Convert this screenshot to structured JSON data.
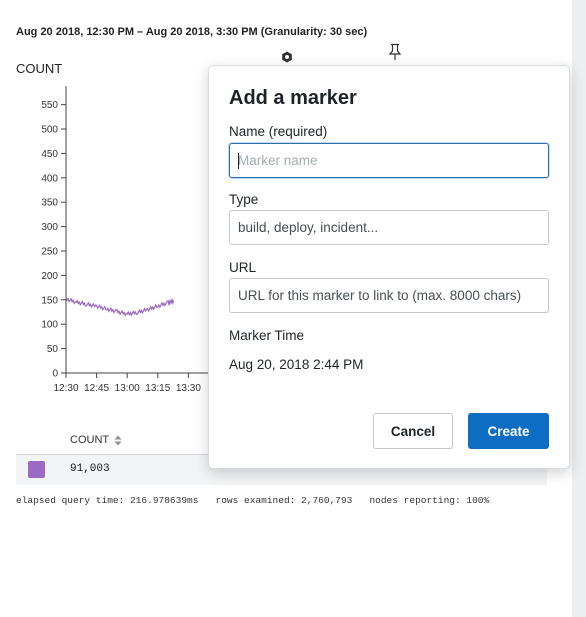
{
  "header": {
    "time_range": "Aug 20 2018, 12:30 PM – Aug 20 2018, 3:30 PM (Granularity: 30 sec)",
    "chart_title": "COUNT"
  },
  "icons": {
    "gear": "gear-icon",
    "pin": "pin-icon",
    "sort": "sort-icon"
  },
  "chart_data": {
    "type": "line",
    "title": "COUNT",
    "xlabel": "",
    "ylabel": "",
    "ylim": [
      0,
      580
    ],
    "yticks": [
      "0",
      "50",
      "100",
      "150",
      "200",
      "250",
      "300",
      "350",
      "400",
      "450",
      "500",
      "550"
    ],
    "xticks": [
      "12:30",
      "12:45",
      "13:00",
      "13:15",
      "13:30"
    ],
    "series": [
      {
        "color": "#9b6ac4",
        "x": [
          "12:30",
          "12:35",
          "12:40",
          "12:45",
          "12:50",
          "12:55",
          "13:00",
          "13:05",
          "13:10",
          "13:15",
          "13:20",
          "13:23"
        ],
        "values": [
          152,
          145,
          141,
          137,
          131,
          126,
          121,
          124,
          130,
          137,
          144,
          148
        ]
      }
    ]
  },
  "results": {
    "column_header": "COUNT",
    "swatch_color": "#9b6ac4",
    "rows": [
      {
        "value": "91,003"
      }
    ]
  },
  "footer": {
    "stats": "elapsed query time: 216.978639ms   rows examined: 2,760,793   nodes reporting: 100%"
  },
  "modal": {
    "title": "Add a marker",
    "name_label": "Name (required)",
    "name_placeholder": "Marker name",
    "type_label": "Type",
    "type_placeholder": "build, deploy, incident...",
    "url_label": "URL",
    "url_placeholder": "URL for this marker to link to (max. 8000 chars)",
    "marker_time_label": "Marker Time",
    "marker_time_value": "Aug 20, 2018 2:44 PM",
    "cancel_label": "Cancel",
    "create_label": "Create",
    "primary_color": "#0d6dc4"
  }
}
